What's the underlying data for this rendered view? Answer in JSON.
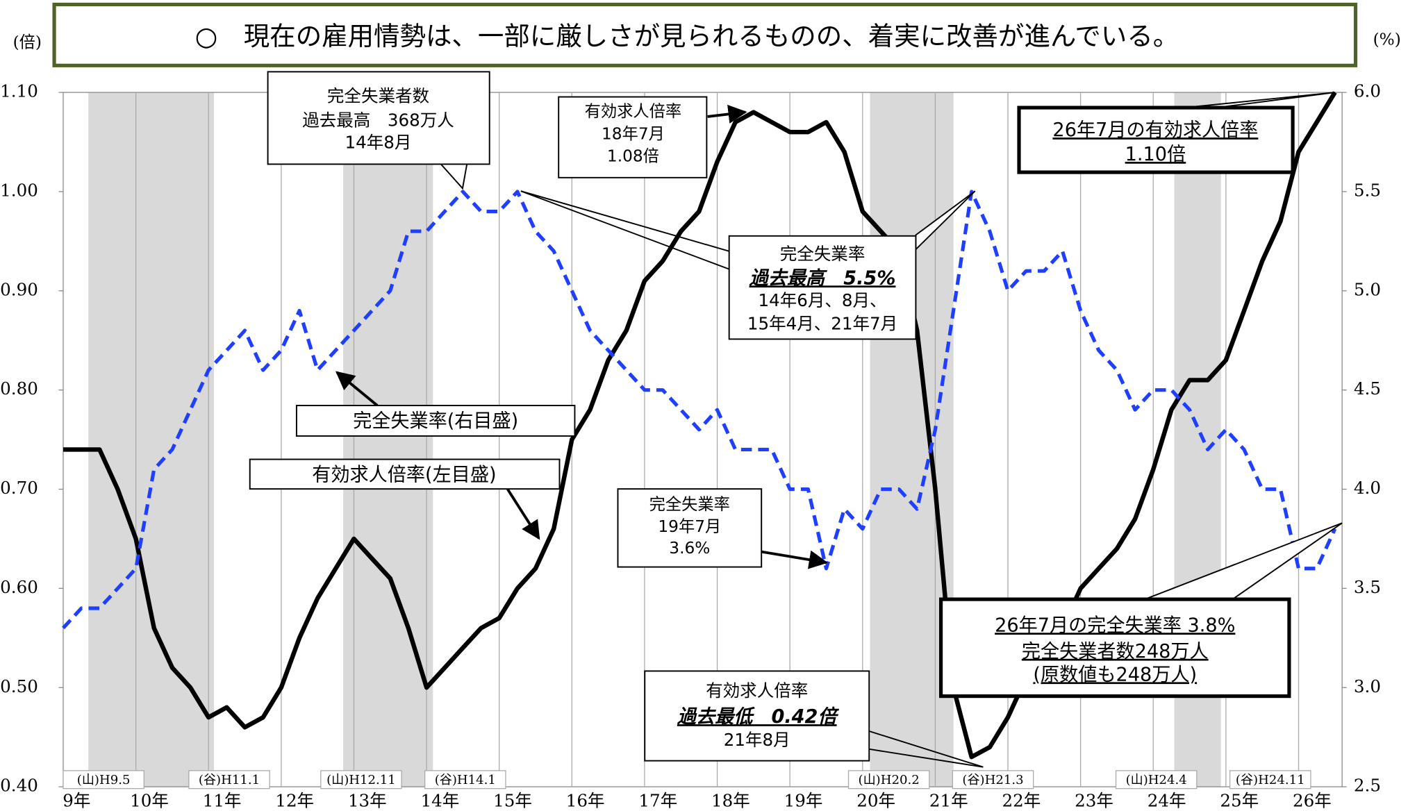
{
  "chart_data": {
    "type": "line",
    "title": "○　現在の雇用情勢は、一部に厳しさが見られるものの、着実に改善が進んでいる。",
    "y_label": "(倍)",
    "y2_label": "(%)",
    "categories": [
      "9年",
      null,
      null,
      null,
      "10年",
      null,
      null,
      null,
      "11年",
      null,
      null,
      null,
      "12年",
      null,
      null,
      null,
      "13年",
      null,
      null,
      null,
      "14年",
      null,
      null,
      null,
      "15年",
      null,
      null,
      null,
      "16年",
      null,
      null,
      null,
      "17年",
      null,
      null,
      null,
      "18年",
      null,
      null,
      null,
      "19年",
      null,
      null,
      null,
      "20年",
      null,
      null,
      null,
      "21年",
      null,
      null,
      null,
      "22年",
      null,
      null,
      null,
      "23年",
      null,
      null,
      null,
      "24年",
      null,
      null,
      null,
      "25年",
      null,
      null,
      null,
      "26年",
      null,
      null
    ],
    "series": [
      {
        "color": "#000000",
        "axis": "y",
        "dash": false,
        "values": [
          0.74,
          0.74,
          0.74,
          0.7,
          0.65,
          0.56,
          0.52,
          0.5,
          0.47,
          0.48,
          0.46,
          0.47,
          0.5,
          0.55,
          0.59,
          0.62,
          0.65,
          0.63,
          0.61,
          0.56,
          0.5,
          0.52,
          0.54,
          0.56,
          0.57,
          0.6,
          0.62,
          0.66,
          0.75,
          0.78,
          0.83,
          0.86,
          0.91,
          0.93,
          0.96,
          0.98,
          1.03,
          1.07,
          1.08,
          1.07,
          1.06,
          1.06,
          1.07,
          1.04,
          0.98,
          0.96,
          0.94,
          0.86,
          0.7,
          0.5,
          0.43,
          0.44,
          0.47,
          0.51,
          0.54,
          0.56,
          0.6,
          0.62,
          0.64,
          0.67,
          0.72,
          0.78,
          0.81,
          0.81,
          0.83,
          0.88,
          0.93,
          0.97,
          1.04,
          1.07,
          1.1
        ]
      },
      {
        "color": "#1f3fff",
        "axis": "y2",
        "dash": true,
        "values": [
          3.3,
          3.4,
          3.4,
          3.5,
          3.6,
          4.1,
          4.2,
          4.4,
          4.6,
          4.7,
          4.8,
          4.6,
          4.7,
          4.9,
          4.6,
          4.7,
          4.8,
          4.9,
          5.0,
          5.3,
          5.3,
          5.4,
          5.5,
          5.4,
          5.4,
          5.5,
          5.3,
          5.2,
          5.0,
          4.8,
          4.7,
          4.6,
          4.5,
          4.5,
          4.4,
          4.3,
          4.4,
          4.2,
          4.2,
          4.2,
          4.0,
          4.0,
          3.6,
          3.9,
          3.8,
          4.0,
          4.0,
          3.9,
          4.3,
          4.9,
          5.5,
          5.3,
          5.0,
          5.1,
          5.1,
          5.2,
          4.9,
          4.7,
          4.6,
          4.4,
          4.5,
          4.5,
          4.4,
          4.2,
          4.3,
          4.2,
          4.0,
          4.0,
          3.6,
          3.6,
          3.8
        ]
      }
    ],
    "ylim": [
      0.4,
      1.1
    ],
    "yticks": [
      {
        "value": 0.4,
        "label": "0.40"
      },
      {
        "value": 0.5,
        "label": "0.50"
      },
      {
        "value": 0.6,
        "label": "0.60"
      },
      {
        "value": 0.7,
        "label": "0.70"
      },
      {
        "value": 0.8,
        "label": "0.80"
      },
      {
        "value": 0.9,
        "label": "0.90"
      },
      {
        "value": 1.0,
        "label": "1.00"
      },
      {
        "value": 1.1,
        "label": "1.10"
      }
    ],
    "y2lim": [
      2.5,
      6.0
    ],
    "y2ticks": [
      2.5,
      {
        "value": 3,
        "label": "3.0"
      },
      3.5,
      {
        "value": 4,
        "label": "4.0"
      },
      4.5,
      {
        "value": 5,
        "label": "5.0"
      },
      5.5,
      {
        "value": 6,
        "label": "6.0"
      }
    ],
    "grid": "x",
    "business_cycle_labels": [
      "(山)H9.5",
      "(谷)H11.1",
      "(山)H12.11",
      "(谷)H14.1",
      "(山)H20.2",
      "(谷)H21.3",
      "(山)H24.4",
      "(谷)H24.11"
    ],
    "annotations": [
      {
        "lines": [
          "完全失業者数",
          "過去最高　368万人",
          "14年8月"
        ]
      },
      {
        "lines": [
          "有効求人倍率",
          "18年7月",
          "1.08倍"
        ]
      },
      {
        "lines": [
          "26年7月の有効求人倍率",
          "1.10倍"
        ]
      },
      {
        "lines": [
          "完全失業率",
          "過去最高　5.5%",
          "14年6月、8月、",
          "15年4月、21年7月"
        ]
      },
      {
        "lines": [
          "完全失業率(右目盛)"
        ]
      },
      {
        "lines": [
          "有効求人倍率(左目盛)"
        ]
      },
      {
        "lines": [
          "完全失業率",
          "19年7月",
          "3.6%"
        ]
      },
      {
        "lines": [
          "有効求人倍率",
          "過去最低　0.42倍",
          "21年8月"
        ]
      },
      {
        "lines": [
          "26年7月の完全失業率 3.8%",
          "完全失業者数248万人",
          "(原数値も248万人)"
        ]
      }
    ]
  }
}
